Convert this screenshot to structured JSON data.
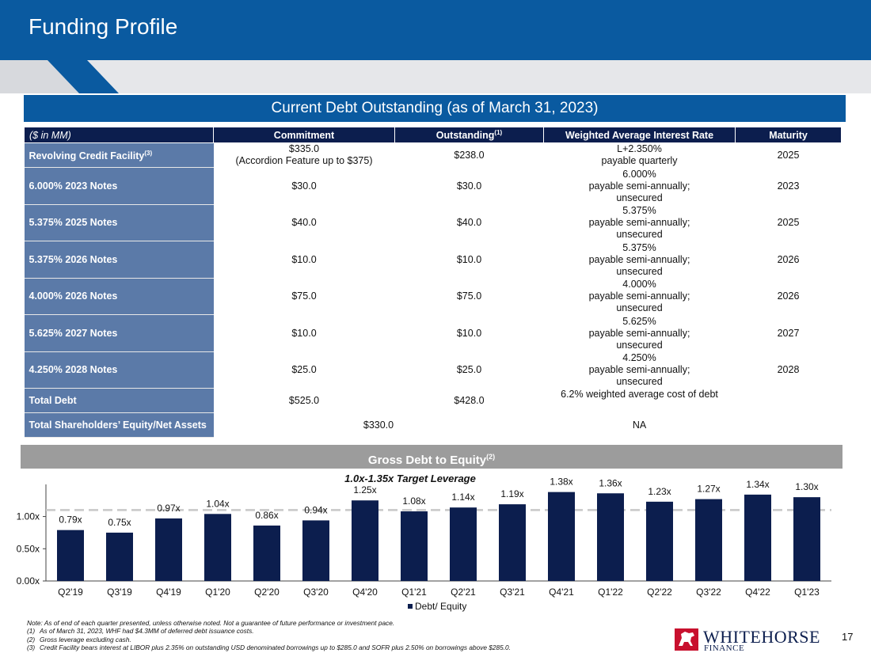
{
  "title": "Funding Profile",
  "debt_table": {
    "banner": "Current Debt Outstanding (as of March 31, 2023)",
    "headers": {
      "label": "($ in MM)",
      "commitment": "Commitment",
      "outstanding": "Outstanding",
      "outstanding_note": "(1)",
      "rate": "Weighted Average Interest Rate",
      "maturity": "Maturity"
    },
    "rows": [
      {
        "label": "Revolving Credit Facility",
        "label_note": "(3)",
        "commitment": "$335.0",
        "commitment_sub": "(Accordion Feature up to $375)",
        "outstanding": "$238.0",
        "rate": "L+2.350%\npayable quarterly",
        "maturity": "2025"
      },
      {
        "label": "6.000% 2023 Notes",
        "commitment": "$30.0",
        "outstanding": "$30.0",
        "rate": "6.000%\npayable semi-annually;\nunsecured",
        "maturity": "2023"
      },
      {
        "label": "5.375% 2025 Notes",
        "commitment": "$40.0",
        "outstanding": "$40.0",
        "rate": "5.375%\npayable semi-annually;\nunsecured",
        "maturity": "2025"
      },
      {
        "label": "5.375% 2026 Notes",
        "commitment": "$10.0",
        "outstanding": "$10.0",
        "rate": "5.375%\npayable semi-annually;\nunsecured",
        "maturity": "2026"
      },
      {
        "label": "4.000% 2026 Notes",
        "commitment": "$75.0",
        "outstanding": "$75.0",
        "rate": "4.000%\npayable semi-annually;\nunsecured",
        "maturity": "2026"
      },
      {
        "label": "5.625% 2027 Notes",
        "commitment": "$10.0",
        "outstanding": "$10.0",
        "rate": "5.625%\npayable semi-annually;\nunsecured",
        "maturity": "2027"
      },
      {
        "label": "4.250% 2028 Notes",
        "commitment": "$25.0",
        "outstanding": "$25.0",
        "rate": "4.250%\npayable semi-annually;\nunsecured",
        "maturity": "2028"
      }
    ],
    "total": {
      "label": "Total Debt",
      "commitment": "$525.0",
      "outstanding": "$428.0",
      "rate": "6.2% weighted average cost of debt"
    },
    "equity": {
      "label": "Total Shareholders’ Equity/Net Assets",
      "value": "$330.0",
      "rate": "NA"
    }
  },
  "chart_banner": {
    "text": "Gross Debt to Equity",
    "note": "(2)"
  },
  "chart_data": {
    "type": "bar",
    "title": "",
    "annotation": "1.0x-1.35x Target Leverage",
    "categories": [
      "Q2'19",
      "Q3'19",
      "Q4'19",
      "Q1'20",
      "Q2'20",
      "Q3'20",
      "Q4'20",
      "Q1'21",
      "Q2'21",
      "Q3'21",
      "Q4'21",
      "Q1'22",
      "Q2'22",
      "Q3'22",
      "Q4'22",
      "Q1'23"
    ],
    "series": [
      {
        "name": "Debt/ Equity",
        "values": [
          0.79,
          0.75,
          0.97,
          1.04,
          0.86,
          0.94,
          1.25,
          1.08,
          1.14,
          1.19,
          1.38,
          1.36,
          1.23,
          1.27,
          1.34,
          1.3
        ]
      }
    ],
    "data_labels": [
      "0.79x",
      "0.75x",
      "0.97x",
      "1.04x",
      "0.86x",
      "0.94x",
      "1.25x",
      "1.08x",
      "1.14x",
      "1.19x",
      "1.38x",
      "1.36x",
      "1.23x",
      "1.27x",
      "1.34x",
      "1.30x"
    ],
    "yticks": [
      0.0,
      0.5,
      1.0
    ],
    "ytick_labels": [
      "0.00x",
      "0.50x",
      "1.00x"
    ],
    "ylim": [
      0,
      1.4
    ],
    "target_line": 1.1,
    "xlabel": "",
    "ylabel": "",
    "legend": "bottom-center",
    "bar_color": "#0c1e4e",
    "target_color": "#c8c8c8"
  },
  "notes": [
    {
      "num": "",
      "text": "Note: As of end of each quarter presented, unless otherwise noted. Not a guarantee of future performance or investment pace."
    },
    {
      "num": "(1)",
      "text": "As of March 31, 2023,  WHF had $4.3MM of deferred debt issuance costs."
    },
    {
      "num": "(2)",
      "text": "Gross leverage excluding cash."
    },
    {
      "num": "(3)",
      "text": "Credit Facility bears interest at LIBOR plus 2.35% on outstanding USD denominated borrowings up to $285.0 and SOFR plus 2.50% on borrowings above $285.0."
    }
  ],
  "logo": {
    "word1": "WHITEHORSE",
    "word2": "FINANCE"
  },
  "page_number": "17",
  "colors": {
    "brand_blue": "#0a5aa0",
    "navy": "#0c1e4e",
    "label_blue": "#5b7aa8",
    "banner_gray": "#9c9c9c",
    "logo_red": "#c8102e"
  }
}
